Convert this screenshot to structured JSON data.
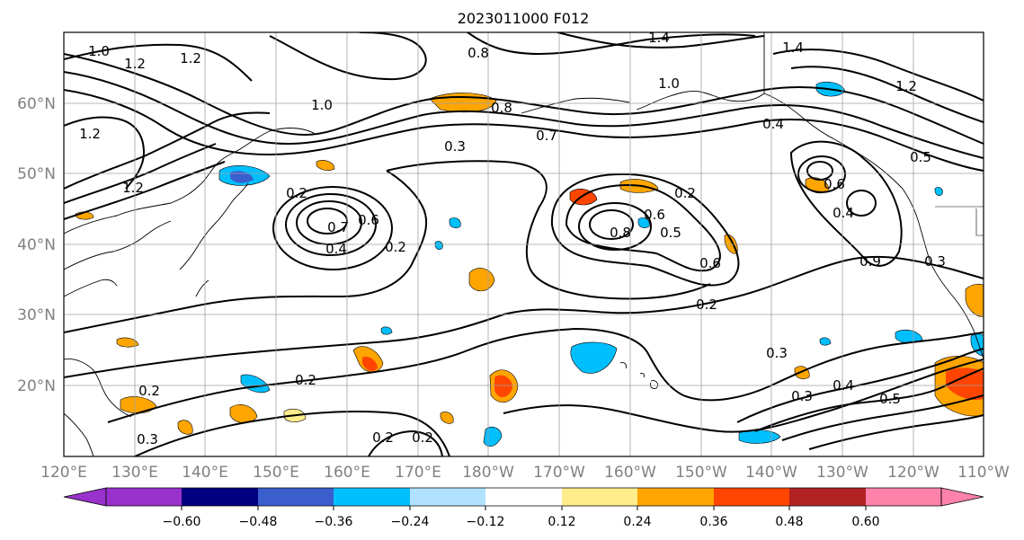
{
  "title": "2023011000 F012",
  "lat_labels": [
    "60°N",
    "50°N",
    "40°N",
    "30°N",
    "20°N"
  ],
  "lon_labels": [
    "120°E",
    "130°E",
    "140°E",
    "150°E",
    "160°E",
    "170°E",
    "180°W",
    "170°W",
    "160°W",
    "150°W",
    "140°W",
    "130°W",
    "120°W",
    "110°W"
  ],
  "colorbar": {
    "colors": [
      "#9932cc",
      "#000080",
      "#3a5fcd",
      "#00bfff",
      "#b0e2ff",
      "#ffffff",
      "#ffec8b",
      "#ffa500",
      "#ff4500",
      "#b22222",
      "#ff82ab"
    ],
    "tick_labels": [
      "−0.60",
      "−0.48",
      "−0.36",
      "−0.24",
      "−0.12",
      "0.12",
      "0.24",
      "0.36",
      "0.48",
      "0.60"
    ]
  },
  "contour_labels": [
    "1.4",
    "1.4",
    "1.2",
    "1.2",
    "1.2",
    "1.2",
    "1.2",
    "1.0",
    "1.0",
    "1.0",
    "0.8",
    "0.8",
    "0.8",
    "0.7",
    "0.7",
    "0.6",
    "0.6",
    "0.6",
    "0.5",
    "0.5",
    "0.4",
    "0.4",
    "0.4",
    "0.3",
    "0.3",
    "0.3",
    "0.3",
    "0.3",
    "0.2",
    "0.2",
    "0.2",
    "0.2",
    "0.2",
    "0.2",
    "0.2",
    "0.2",
    "0.6",
    "0.5",
    "0.4",
    "0.9"
  ]
}
